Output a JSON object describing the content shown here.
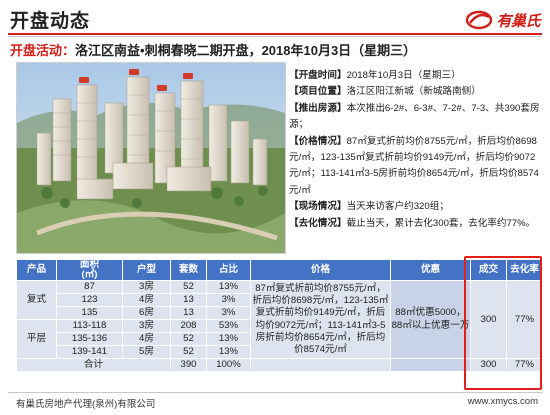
{
  "header": {
    "title": "开盘动态",
    "brand_name": "有巢氏",
    "brand_color": "#d0201a"
  },
  "subtitle": {
    "label": "开盘活动：",
    "text": "洛江区南益•刺桐春晓二期开盘，2018年10月3日（星期三）"
  },
  "info": [
    {
      "key": "【开盘时间】",
      "value": "2018年10月3日（星期三）"
    },
    {
      "key": "【项目位置】",
      "value": "洛江区阳江新城（新城路南侧）"
    },
    {
      "key": "【推出房源】",
      "value": "本次推出6-2#、6-3#、7-2#、7-3、共390套房源；"
    },
    {
      "key": "【价格情况】",
      "value": "87㎡复式折前均价8755元/㎡，折后均价8698元/㎡，123-135㎡复式折前均价9149元/㎡，折后均价9072元/㎡；113-141㎡3-5房折前均价8654元/㎡，折后均价8574元/㎡"
    },
    {
      "key": "【现场情况】",
      "value": "当天来访客户约320组；"
    },
    {
      "key": "【去化情况】",
      "value": "截止当天，累计去化300套，去化率约77%。"
    }
  ],
  "table": {
    "headers": [
      "产品",
      "面积\n(㎡)",
      "户型",
      "套数",
      "占比",
      "价格",
      "优惠",
      "成交",
      "去化率"
    ],
    "groups": [
      {
        "product": "复式",
        "rows": [
          {
            "area": "87",
            "type": "3房",
            "count": "52",
            "ratio": "13%"
          },
          {
            "area": "123",
            "type": "4房",
            "count": "13",
            "ratio": "3%"
          },
          {
            "area": "135",
            "type": "6房",
            "count": "13",
            "ratio": "3%"
          }
        ]
      },
      {
        "product": "平层",
        "rows": [
          {
            "area": "113-118",
            "type": "3房",
            "count": "208",
            "ratio": "53%"
          },
          {
            "area": "135-136",
            "type": "4房",
            "count": "52",
            "ratio": "13%"
          },
          {
            "area": "139-141",
            "type": "5房",
            "count": "52",
            "ratio": "13%"
          }
        ]
      }
    ],
    "price_text": "87㎡复式折前均价8755元/㎡，折后均价8698元/㎡，123-135㎡复式折前均价9149元/㎡，折后均价9072元/㎡；113-141㎡3-5房折前均价8654元/㎡，折后均价8574元/㎡",
    "discount_text": "88㎡优惠5000，88㎡以上优惠一万",
    "deal": "300",
    "rate": "77%",
    "total": {
      "label": "合计",
      "count": "390",
      "ratio": "100%",
      "deal": "300",
      "rate": "77%"
    }
  },
  "footer": {
    "company": "有巢氏房地产代理(泉州)有限公司",
    "url": "www.xmycs.com"
  }
}
